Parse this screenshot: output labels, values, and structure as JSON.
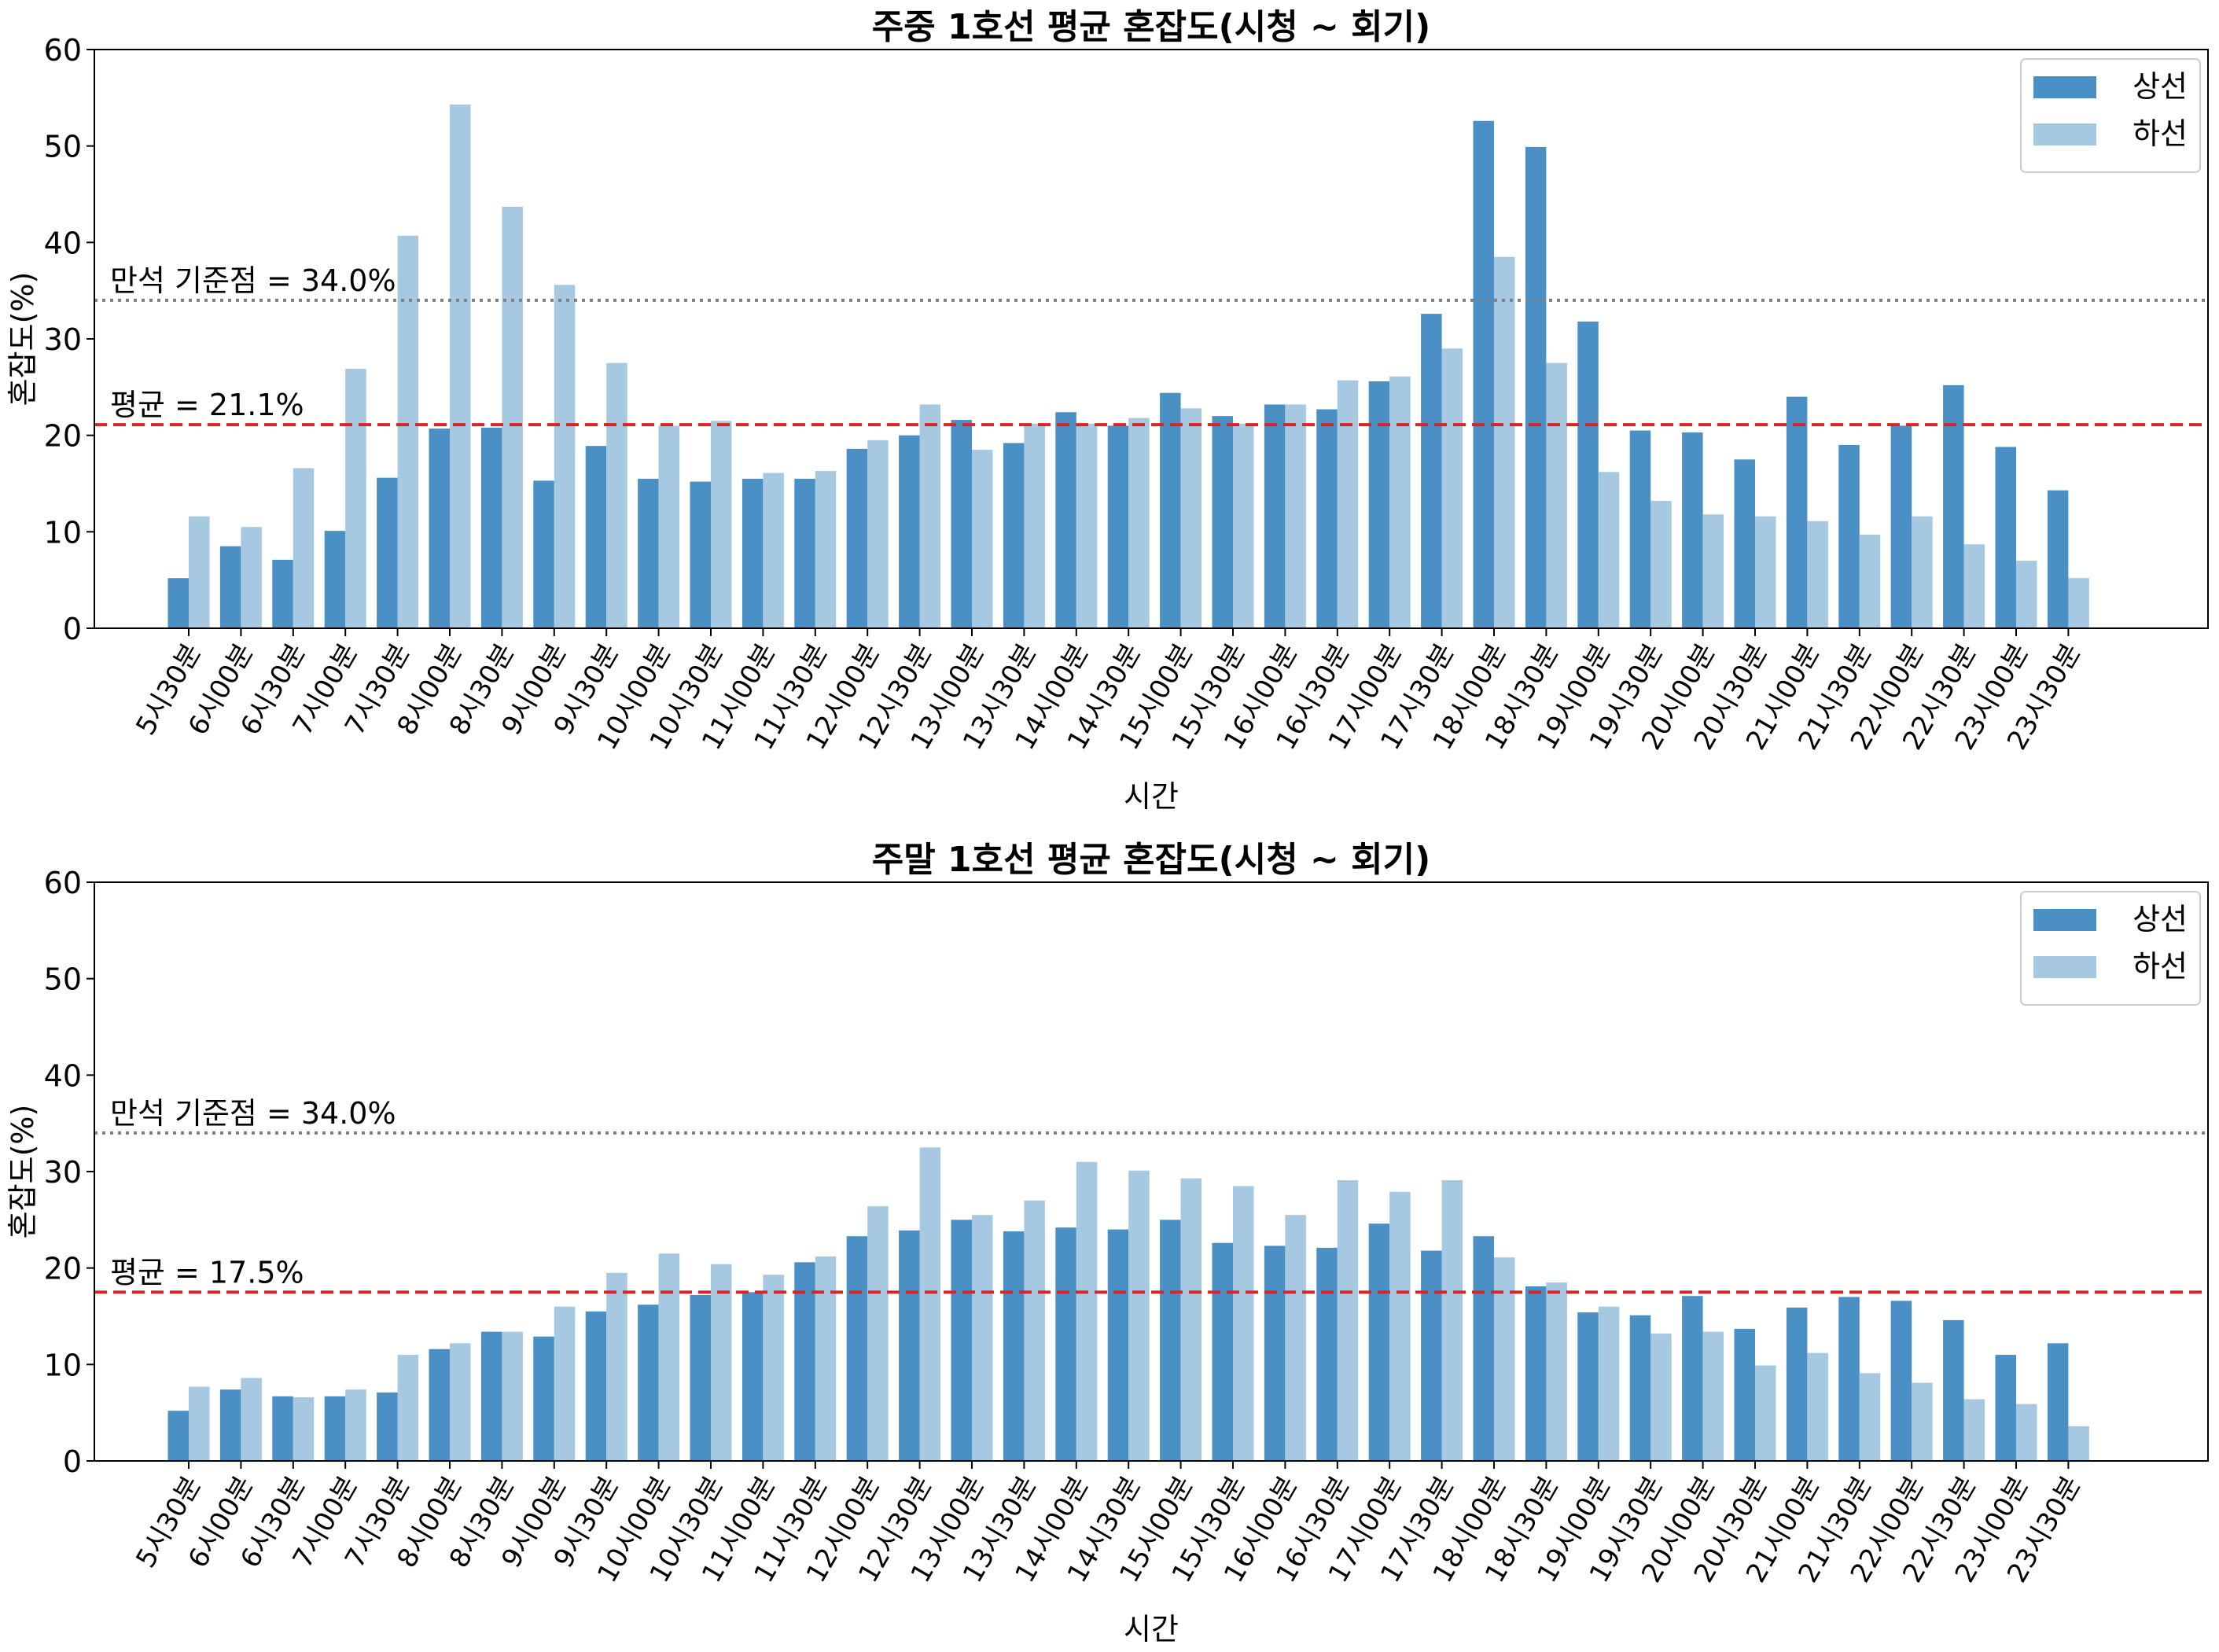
{
  "colors": {
    "up": "#4a90c4",
    "down": "#a6c8e1",
    "avg": "#d62728",
    "full": "#7f7f7f",
    "axis": "#000000"
  },
  "chart_data": [
    {
      "type": "bar",
      "title": "주중 1호선 평균 혼잡도(시청 ~ 회기)",
      "xlabel": "시간",
      "ylabel": "혼잡도(%)",
      "ylim": [
        0,
        60
      ],
      "yticks": [
        0,
        10,
        20,
        30,
        40,
        50,
        60
      ],
      "legend_position": "top-right",
      "categories": [
        "5시30분",
        "6시00분",
        "6시30분",
        "7시00분",
        "7시30분",
        "8시00분",
        "8시30분",
        "9시00분",
        "9시30분",
        "10시00분",
        "10시30분",
        "11시00분",
        "11시30분",
        "12시00분",
        "12시30분",
        "13시00분",
        "13시30분",
        "14시00분",
        "14시30분",
        "15시00분",
        "15시30분",
        "16시00분",
        "16시30분",
        "17시00분",
        "17시30분",
        "18시00분",
        "18시30분",
        "19시00분",
        "19시30분",
        "20시00분",
        "20시30분",
        "21시00분",
        "21시30분",
        "22시00분",
        "22시30분",
        "23시00분",
        "23시30분"
      ],
      "series": [
        {
          "name": "상선",
          "color_key": "up",
          "values": [
            5.2,
            8.5,
            7.1,
            10.1,
            15.6,
            20.7,
            20.8,
            15.3,
            18.9,
            15.5,
            15.2,
            15.5,
            15.5,
            18.6,
            20.0,
            21.6,
            19.2,
            22.4,
            21.0,
            24.4,
            22.0,
            23.2,
            22.7,
            25.6,
            32.6,
            52.6,
            49.9,
            31.8,
            20.5,
            20.3,
            17.5,
            24.0,
            19.0,
            21.0,
            25.2,
            18.8,
            14.3
          ]
        },
        {
          "name": "하선",
          "color_key": "down",
          "values": [
            11.6,
            10.5,
            16.6,
            26.9,
            40.7,
            54.3,
            43.7,
            35.6,
            27.5,
            21.0,
            21.5,
            16.1,
            16.3,
            19.5,
            23.2,
            18.5,
            21.2,
            21.2,
            21.8,
            22.8,
            21.2,
            23.2,
            25.7,
            26.1,
            29.0,
            38.5,
            27.5,
            16.2,
            13.2,
            11.8,
            11.6,
            11.1,
            9.7,
            11.6,
            8.7,
            7.0,
            5.2
          ]
        }
      ],
      "reference_lines": [
        {
          "label": "만석 기준점 = 34.0%",
          "value": 34.0,
          "style": "dotted",
          "color_key": "full"
        },
        {
          "label": "평균 = 21.1%",
          "value": 21.1,
          "style": "dashed",
          "color_key": "avg"
        }
      ]
    },
    {
      "type": "bar",
      "title": "주말 1호선 평균 혼잡도(시청 ~ 회기)",
      "xlabel": "시간",
      "ylabel": "혼잡도(%)",
      "ylim": [
        0,
        60
      ],
      "yticks": [
        0,
        10,
        20,
        30,
        40,
        50,
        60
      ],
      "legend_position": "top-right",
      "categories": [
        "5시30분",
        "6시00분",
        "6시30분",
        "7시00분",
        "7시30분",
        "8시00분",
        "8시30분",
        "9시00분",
        "9시30분",
        "10시00분",
        "10시30분",
        "11시00분",
        "11시30분",
        "12시00분",
        "12시30분",
        "13시00분",
        "13시30분",
        "14시00분",
        "14시30분",
        "15시00분",
        "15시30분",
        "16시00분",
        "16시30분",
        "17시00분",
        "17시30분",
        "18시00분",
        "18시30분",
        "19시00분",
        "19시30분",
        "20시00분",
        "20시30분",
        "21시00분",
        "21시30분",
        "22시00분",
        "22시30분",
        "23시00분",
        "23시30분"
      ],
      "series": [
        {
          "name": "상선",
          "color_key": "up",
          "values": [
            5.2,
            7.4,
            6.7,
            6.7,
            7.1,
            11.6,
            13.4,
            12.9,
            15.5,
            16.2,
            17.2,
            17.5,
            20.6,
            23.3,
            23.9,
            25.0,
            23.8,
            24.2,
            24.0,
            25.0,
            22.6,
            22.3,
            22.1,
            24.6,
            21.8,
            23.3,
            18.1,
            15.4,
            15.1,
            17.1,
            13.7,
            15.9,
            17.0,
            16.6,
            14.6,
            11.0,
            12.2
          ]
        },
        {
          "name": "하선",
          "color_key": "down",
          "values": [
            7.7,
            8.6,
            6.6,
            7.4,
            11.0,
            12.2,
            13.4,
            16.0,
            19.5,
            21.5,
            20.4,
            19.3,
            21.2,
            26.4,
            32.5,
            25.5,
            27.0,
            31.0,
            30.1,
            29.3,
            28.5,
            25.5,
            29.1,
            27.9,
            29.1,
            21.1,
            18.5,
            16.0,
            13.2,
            13.4,
            9.9,
            11.2,
            9.1,
            8.1,
            6.4,
            5.9,
            3.6
          ]
        }
      ],
      "reference_lines": [
        {
          "label": "만석 기준점 = 34.0%",
          "value": 34.0,
          "style": "dotted",
          "color_key": "full"
        },
        {
          "label": "평균 = 17.5%",
          "value": 17.5,
          "style": "dashed",
          "color_key": "avg"
        }
      ]
    }
  ]
}
